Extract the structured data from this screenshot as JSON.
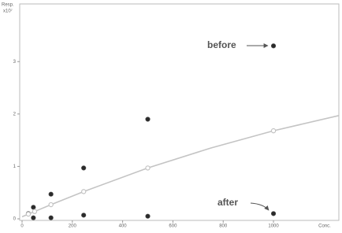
{
  "chart_data": {
    "type": "scatter",
    "x_label": "Conc.",
    "y_label": "Resp.",
    "y_unit": "x10⁷",
    "xlim": [
      0,
      1260
    ],
    "ylim": [
      0,
      4.1
    ],
    "xticks": [
      0,
      200,
      400,
      600,
      800,
      1000
    ],
    "yticks": [
      0,
      1,
      2,
      3
    ],
    "series": [
      {
        "mode": "markers",
        "color": "#2a2a2a",
        "x": [
          25,
          45,
          45,
          115,
          115,
          245,
          245,
          500,
          500,
          1000,
          1000
        ],
        "values": [
          0.1,
          0.22,
          0.02,
          0.47,
          0.02,
          0.97,
          0.07,
          1.9,
          0.05,
          3.3,
          0.1
        ]
      },
      {
        "mode": "line",
        "color": "#c4c4c4",
        "x": [
          0,
          25,
          50,
          115,
          245,
          500,
          750,
          1000,
          1260
        ],
        "values": [
          0.04,
          0.09,
          0.14,
          0.27,
          0.52,
          0.97,
          1.35,
          1.68,
          1.97
        ]
      },
      {
        "mode": "open-markers",
        "color": "#c4c4c4",
        "x": [
          25,
          50,
          115,
          245,
          500,
          1000
        ],
        "values": [
          0.09,
          0.14,
          0.27,
          0.52,
          0.97,
          1.68
        ]
      }
    ],
    "annotations": [
      {
        "text": "before"
      },
      {
        "text": "after"
      }
    ]
  }
}
